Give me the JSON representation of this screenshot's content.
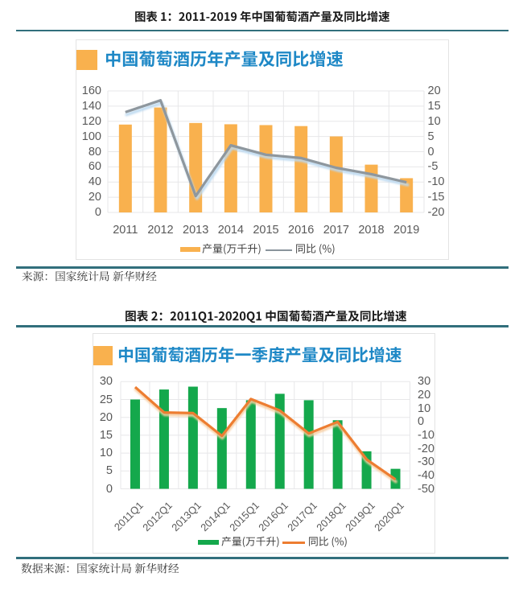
{
  "document": {
    "figures": [
      {
        "caption": "图表 1：2011-2019 年中国葡萄酒产量及同比增速",
        "chart_title": "中国葡萄酒历年产量及同比增速",
        "legend": {
          "bar": "产量(万千升)",
          "line": "同比 (%)"
        },
        "source": "来源：国家统计局 新华财经"
      },
      {
        "caption": "图表 2：2011Q1-2020Q1 中国葡萄酒产量及同比增速",
        "chart_title": "中国葡萄酒历年一季度产量及同比增速",
        "legend": {
          "bar": "产量(万千升)",
          "line": "同比 (%)"
        },
        "source": "数据来源：国家统计局 新华财经"
      }
    ]
  },
  "chart_data": [
    {
      "type": "bar",
      "subtype": "combo-bar-line",
      "title": "中国葡萄酒历年产量及同比增速",
      "categories": [
        "2011",
        "2012",
        "2013",
        "2014",
        "2015",
        "2016",
        "2017",
        "2018",
        "2019"
      ],
      "series": [
        {
          "name": "产量(万千升)",
          "type": "bar",
          "axis": "left",
          "values": [
            115.7,
            138.2,
            117.8,
            116.1,
            115.0,
            113.7,
            100.1,
            62.9,
            45.1
          ],
          "color": "#F9B14E"
        },
        {
          "name": "同比 (%)",
          "type": "line",
          "axis": "right",
          "values": [
            13.0,
            16.9,
            -14.6,
            2.1,
            -1.0,
            -2.1,
            -5.3,
            -7.4,
            -10.1
          ],
          "color": "#8E979E",
          "shadow": "#BAD8F0"
        }
      ],
      "axis_left": {
        "min": 0,
        "max": 160,
        "ticks": [
          "160",
          "140",
          "120",
          "100",
          "80",
          "60",
          "40",
          "20",
          "0"
        ]
      },
      "axis_right": {
        "min": -20,
        "max": 20,
        "ticks": [
          "20",
          "15",
          "10",
          "5",
          "0",
          "-5",
          "-10",
          "-15",
          "-20"
        ]
      },
      "xlabel": "",
      "ylabel": "",
      "grid": true,
      "legend_position": "bottom"
    },
    {
      "type": "bar",
      "subtype": "combo-bar-line",
      "title": "中国葡萄酒历年一季度产量及同比增速",
      "categories": [
        "2011Q1",
        "2012Q1",
        "2013Q1",
        "2014Q1",
        "2015Q1",
        "2016Q1",
        "2017Q1",
        "2018Q1",
        "2019Q1",
        "2020Q1"
      ],
      "series": [
        {
          "name": "产量(万千升)",
          "type": "bar",
          "axis": "left",
          "values": [
            25.0,
            27.8,
            28.6,
            22.6,
            24.8,
            26.6,
            24.8,
            19.2,
            10.5,
            5.6
          ],
          "color": "#14A84C"
        },
        {
          "name": "同比 (%)",
          "type": "line",
          "axis": "right",
          "values": [
            25.9,
            7.0,
            6.5,
            -10.5,
            17.0,
            8.5,
            -8.7,
            0.0,
            -28.0,
            -43.0
          ],
          "color": "#ED7D31",
          "shadow": "#F7CDA0"
        }
      ],
      "axis_left": {
        "min": 0,
        "max": 30,
        "ticks": [
          "30",
          "25",
          "20",
          "15",
          "10",
          "5",
          "0"
        ]
      },
      "axis_right": {
        "min": -50,
        "max": 30,
        "ticks": [
          "30",
          "20",
          "10",
          "0",
          "-10",
          "-20",
          "-30",
          "-40",
          "-50"
        ]
      },
      "xlabel": "",
      "ylabel": "",
      "grid": true,
      "legend_position": "bottom"
    }
  ],
  "colors": {
    "bar_orange": "#F9B14E",
    "bar_green": "#14A84C",
    "line_gray": "#8E979E",
    "line_gray_shadow": "#BAD8F0",
    "line_orange": "#ED7D31",
    "line_orange_shadow": "#F7CDA0",
    "teal_rule": "#316F7C",
    "teal_rule_dark": "#275F68",
    "header_blue": "#1E88C6",
    "grid": "#E7E7E9",
    "axis_text": "#595959",
    "title_text": "#1A1A1A",
    "source_text": "#333333",
    "box_border": "#E3E3E3"
  }
}
